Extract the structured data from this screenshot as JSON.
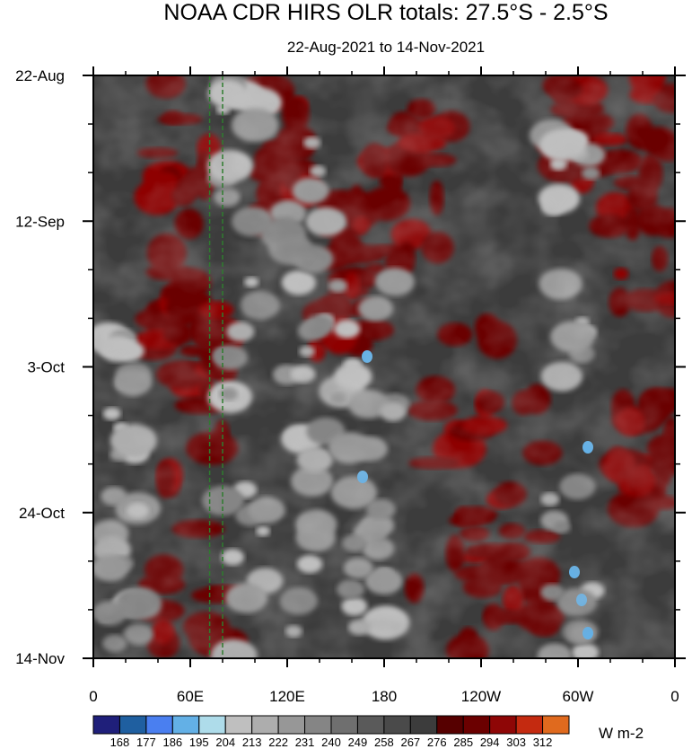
{
  "chart_data": {
    "type": "heatmap",
    "title": "NOAA CDR HIRS OLR totals: 27.5°S - 2.5°S",
    "subtitle": "22-Aug-2021 to 14-Nov-2021",
    "y_ticks": [
      "22-Aug",
      "12-Sep",
      "3-Oct",
      "24-Oct",
      "14-Nov"
    ],
    "x_ticks": [
      "0",
      "60E",
      "120E",
      "180",
      "120W",
      "60W",
      "0"
    ],
    "x_range": [
      0,
      360
    ],
    "y_range": [
      "22-Aug-2021",
      "14-Nov-2021"
    ],
    "units": "W m-2",
    "levels": [
      168,
      177,
      186,
      195,
      204,
      213,
      222,
      231,
      240,
      249,
      258,
      267,
      276,
      285,
      294,
      303,
      312
    ],
    "colors": [
      "#1f1f7a",
      "#1f5fa0",
      "#4a7ff0",
      "#63b0e6",
      "#aedcea",
      "#bfbfbf",
      "#adadad",
      "#979797",
      "#858585",
      "#6f6f6f",
      "#5a5a5a",
      "#4a4a4a",
      "#3c3c3c",
      "#560000",
      "#6b0000",
      "#8e0606",
      "#c42a10",
      "#e06a1e"
    ],
    "reference_lines_lon": [
      72,
      80
    ],
    "reference_line_color": "#2e7d2e"
  }
}
